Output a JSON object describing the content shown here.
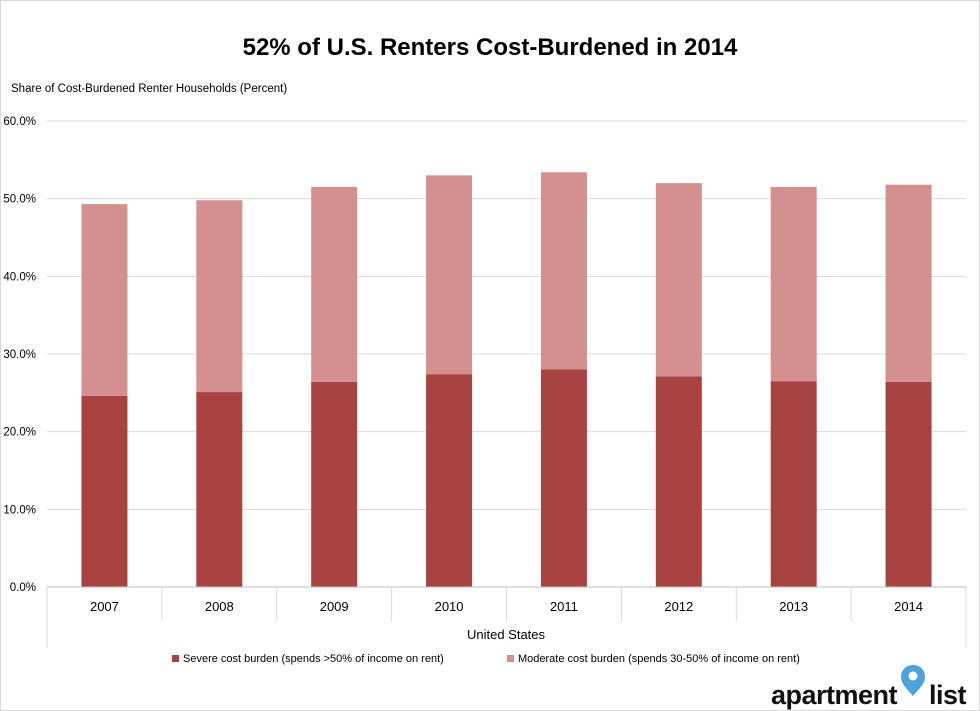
{
  "chart_data": {
    "type": "bar",
    "stacked": true,
    "title": "52% of U.S. Renters Cost-Burdened in 2014",
    "ylabel": "Share of Cost-Burdened Renter Households (Percent)",
    "xlabel": "United States",
    "categories": [
      "2007",
      "2008",
      "2009",
      "2010",
      "2011",
      "2012",
      "2013",
      "2014"
    ],
    "ylim": [
      0,
      60
    ],
    "yticks": [
      0,
      10,
      20,
      30,
      40,
      50,
      60
    ],
    "ytick_labels": [
      "0.0%",
      "10.0%",
      "20.0%",
      "30.0%",
      "40.0%",
      "50.0%",
      "60.0%"
    ],
    "grid": true,
    "legend_position": "bottom",
    "series": [
      {
        "name": "Severe cost burden (spends >50% of income on rent)",
        "color": "#a84341",
        "values": [
          24.6,
          25.1,
          26.4,
          27.4,
          28.0,
          27.1,
          26.5,
          26.4
        ]
      },
      {
        "name": "Moderate cost burden (spends 30-50% of income on rent)",
        "color": "#d3908f",
        "values": [
          24.7,
          24.7,
          25.1,
          25.6,
          25.4,
          24.9,
          25.0,
          25.4
        ]
      }
    ]
  },
  "brand": {
    "wordmark_left": "apartment",
    "wordmark_right": "list",
    "logo_icon": "map-pin-icon",
    "pin_color": "#4ba3d9"
  }
}
